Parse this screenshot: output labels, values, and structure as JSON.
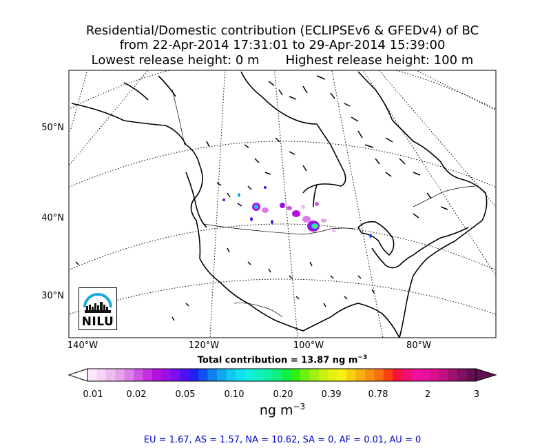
{
  "title": {
    "line1": "Residential/Domestic contribution (ECLIPSEv6 & GFEDv4) of BC",
    "line2": "from 22-Apr-2014 17:31:01 to 29-Apr-2014 15:39:00",
    "line3a": "Lowest release height: 0 m",
    "line3b": "Highest release height: 100 m"
  },
  "map": {
    "lat_labels": [
      "50°N",
      "40°N",
      "30°N"
    ],
    "lon_labels": [
      "140°W",
      "120°W",
      "100°W",
      "80°W"
    ]
  },
  "total": {
    "text": "Total contribution = 13.87 ng m",
    "exp": "−3"
  },
  "colorbar": {
    "tick_labels": [
      "0.01",
      "0.02",
      "0.05",
      "0.10",
      "0.20",
      "0.39",
      "0.78",
      "2",
      "3"
    ],
    "colors": [
      "#fbe6fb",
      "#f5d2f6",
      "#eebcf1",
      "#e6a0ec",
      "#dc7ee8",
      "#cf55e4",
      "#c22ee0",
      "#b311e0",
      "#9c10e8",
      "#7a10f0",
      "#5010f5",
      "#2020f5",
      "#1050f0",
      "#1080f0",
      "#10a8f0",
      "#10c8f0",
      "#10e0f0",
      "#10f0e0",
      "#10f0c0",
      "#10f0a0",
      "#10f080",
      "#10f040",
      "#30f010",
      "#70f010",
      "#a0f010",
      "#c8f010",
      "#e8f010",
      "#f8f010",
      "#f8d010",
      "#f8b010",
      "#f89010",
      "#f87010",
      "#f84010",
      "#f81040",
      "#f01070",
      "#f0109c",
      "#e8109c",
      "#d8108c",
      "#c01080",
      "#a01070",
      "#801060",
      "#601050"
    ],
    "unit_text": "ng m",
    "unit_exp": "−3"
  },
  "regions_text": "EU = 1.67,  AS = 1.57,  NA = 10.62,  SA = 0,  AF = 0.01,  AU = 0",
  "logo": {
    "text": "NILU"
  }
}
